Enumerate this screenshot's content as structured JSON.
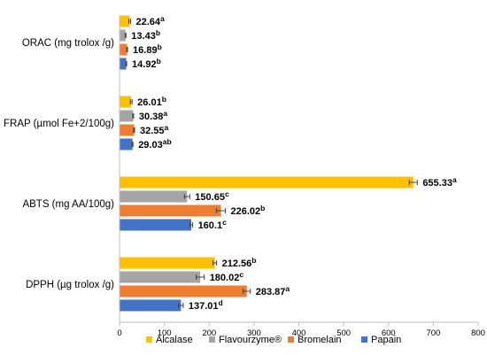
{
  "chart_data": {
    "type": "bar",
    "orientation": "horizontal",
    "categories": [
      "ORAC (mg trolox /g)",
      "FRAP (µmol Fe+2/100g)",
      "ABTS (mg AA/100g)",
      "DPPH (µg trolox /g)"
    ],
    "series": [
      {
        "name": "Alcalase",
        "color": "#FFC000",
        "values": [
          22.64,
          26.01,
          655.33,
          212.56
        ],
        "errors": [
          2,
          2,
          9,
          4
        ],
        "value_labels": [
          "22.64",
          "26.01",
          "655.33",
          "212.56"
        ],
        "letters": [
          "a",
          "b",
          "a",
          "b"
        ]
      },
      {
        "name": "Flavourzyme®",
        "color": "#A5A5A5",
        "values": [
          13.43,
          30.38,
          150.65,
          180.02
        ],
        "errors": [
          1,
          1,
          6,
          9
        ],
        "value_labels": [
          "13.43",
          "30.38",
          "150.65",
          "180.02"
        ],
        "letters": [
          "b",
          "a",
          "c",
          "c"
        ]
      },
      {
        "name": "Bromelain",
        "color": "#ED7D31",
        "values": [
          16.89,
          32.55,
          226.02,
          283.87
        ],
        "errors": [
          1,
          1,
          10,
          8
        ],
        "value_labels": [
          "16.89",
          "32.55",
          "226.02",
          "283.87"
        ],
        "letters": [
          "b",
          "a",
          "b",
          "a"
        ]
      },
      {
        "name": "Papain",
        "color": "#4472C4",
        "values": [
          14.92,
          29.03,
          160.1,
          137.01
        ],
        "errors": [
          1,
          1,
          3,
          5
        ],
        "value_labels": [
          "14.92",
          "29.03",
          "160.1",
          "137.01"
        ],
        "letters": [
          "b",
          "ab",
          "c",
          "d"
        ]
      }
    ],
    "xlim": [
      0,
      800
    ],
    "x_ticks": [
      "0",
      "100",
      "200",
      "300",
      "400",
      "500",
      "600",
      "700",
      "800"
    ],
    "grid": false,
    "legend_position": "bottom"
  }
}
